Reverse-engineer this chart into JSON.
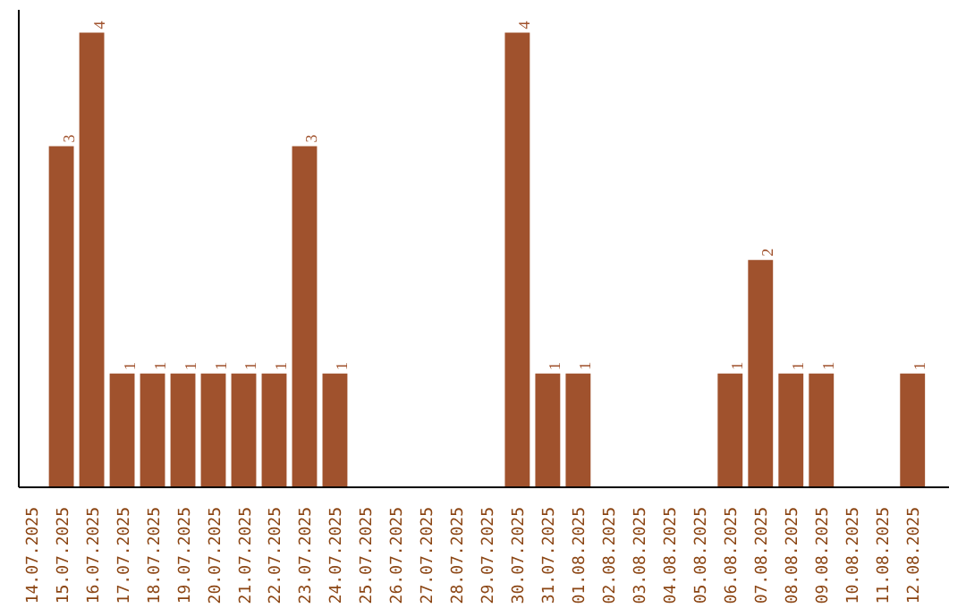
{
  "chart_data": {
    "type": "bar",
    "categories": [
      "14.07.2025",
      "15.07.2025",
      "16.07.2025",
      "17.07.2025",
      "18.07.2025",
      "19.07.2025",
      "20.07.2025",
      "21.07.2025",
      "22.07.2025",
      "23.07.2025",
      "24.07.2025",
      "25.07.2025",
      "26.07.2025",
      "27.07.2025",
      "28.07.2025",
      "29.07.2025",
      "30.07.2025",
      "31.07.2025",
      "01.08.2025",
      "02.08.2025",
      "03.08.2025",
      "04.08.2025",
      "05.08.2025",
      "06.08.2025",
      "07.08.2025",
      "08.08.2025",
      "09.08.2025",
      "10.08.2025",
      "11.08.2025",
      "12.08.2025"
    ],
    "values": [
      0,
      3,
      4,
      1,
      1,
      1,
      1,
      1,
      1,
      3,
      1,
      0,
      0,
      0,
      0,
      0,
      4,
      1,
      1,
      0,
      0,
      0,
      0,
      1,
      2,
      1,
      1,
      0,
      0,
      1
    ],
    "value_labels": [
      null,
      "3",
      "4",
      "1",
      "1",
      "1",
      "1",
      "1",
      "1",
      "3",
      "1",
      null,
      null,
      null,
      null,
      null,
      "4",
      "1",
      "1",
      null,
      null,
      null,
      null,
      "1",
      "2",
      "1",
      "1",
      null,
      null,
      "1"
    ],
    "color": "#a0522d",
    "ylim": [
      0,
      4.2
    ],
    "tick_labels": "x",
    "grid": false
  }
}
